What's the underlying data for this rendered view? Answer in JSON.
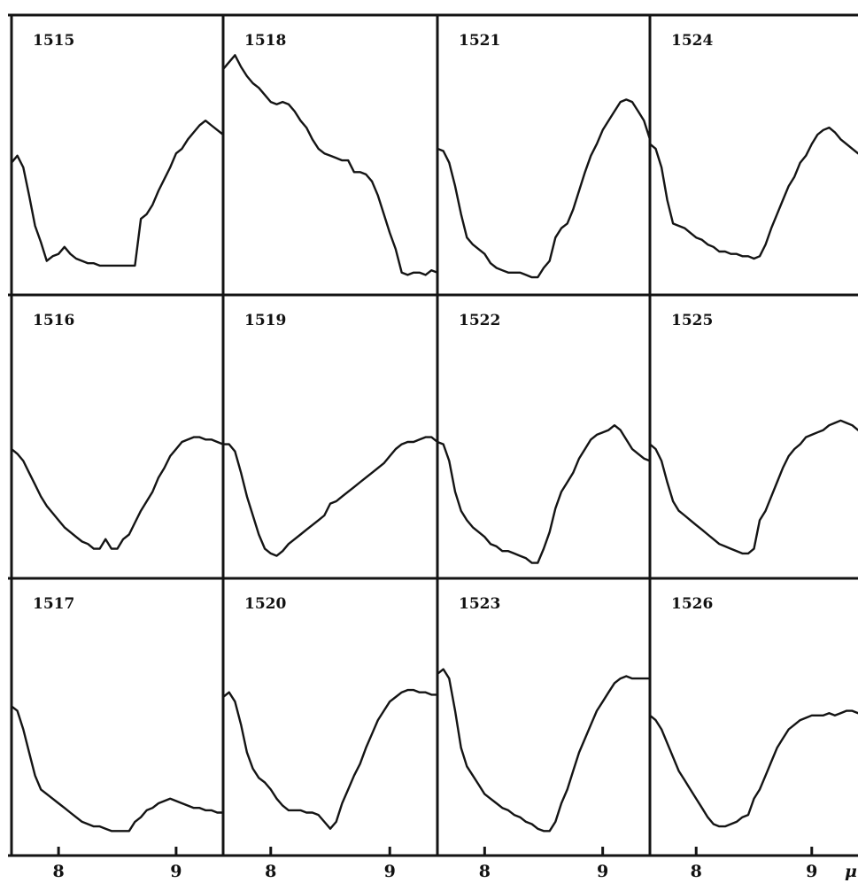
{
  "chart_data": {
    "type": "line",
    "layout": "grid 3 rows x 4 columns of small panels",
    "x_tick_labels": [
      "8",
      "9"
    ],
    "x_edge_label": "μ",
    "xlim": [
      7.6,
      9.4
    ],
    "ylim": [
      0,
      1
    ],
    "grid": false,
    "panels": [
      {
        "label": "1515",
        "x": [
          7.6,
          7.65,
          7.7,
          7.75,
          7.8,
          7.85,
          7.9,
          7.95,
          8.0,
          8.05,
          8.1,
          8.15,
          8.2,
          8.25,
          8.3,
          8.35,
          8.4,
          8.45,
          8.5,
          8.55,
          8.6,
          8.65,
          8.7,
          8.75,
          8.8,
          8.85,
          8.9,
          8.95,
          9.0,
          9.05,
          9.1,
          9.15,
          9.2,
          9.25,
          9.3,
          9.35,
          9.4
        ],
        "y": [
          0.52,
          0.55,
          0.5,
          0.38,
          0.25,
          0.18,
          0.1,
          0.12,
          0.13,
          0.16,
          0.13,
          0.11,
          0.1,
          0.09,
          0.09,
          0.08,
          0.08,
          0.08,
          0.08,
          0.08,
          0.08,
          0.08,
          0.28,
          0.3,
          0.34,
          0.4,
          0.45,
          0.5,
          0.56,
          0.58,
          0.62,
          0.65,
          0.68,
          0.7,
          0.68,
          0.66,
          0.64
        ]
      },
      {
        "label": "1518",
        "x": [
          7.6,
          7.65,
          7.7,
          7.75,
          7.8,
          7.85,
          7.9,
          7.95,
          8.0,
          8.05,
          8.1,
          8.15,
          8.2,
          8.25,
          8.3,
          8.35,
          8.4,
          8.45,
          8.5,
          8.55,
          8.6,
          8.65,
          8.7,
          8.75,
          8.8,
          8.85,
          8.9,
          8.95,
          9.0,
          9.05,
          9.1,
          9.15,
          9.2,
          9.25,
          9.3,
          9.35,
          9.4
        ],
        "y": [
          0.92,
          0.95,
          0.98,
          0.93,
          0.89,
          0.86,
          0.84,
          0.81,
          0.78,
          0.77,
          0.78,
          0.77,
          0.74,
          0.7,
          0.67,
          0.62,
          0.58,
          0.56,
          0.55,
          0.54,
          0.53,
          0.53,
          0.48,
          0.48,
          0.47,
          0.44,
          0.38,
          0.3,
          0.22,
          0.15,
          0.05,
          0.04,
          0.05,
          0.05,
          0.04,
          0.06,
          0.05
        ]
      },
      {
        "label": "1521",
        "x": [
          7.6,
          7.65,
          7.7,
          7.75,
          7.8,
          7.85,
          7.9,
          7.95,
          8.0,
          8.05,
          8.1,
          8.15,
          8.2,
          8.25,
          8.3,
          8.35,
          8.4,
          8.45,
          8.5,
          8.55,
          8.6,
          8.65,
          8.7,
          8.75,
          8.8,
          8.85,
          8.9,
          8.95,
          9.0,
          9.05,
          9.1,
          9.15,
          9.2,
          9.25,
          9.3,
          9.35,
          9.4
        ],
        "y": [
          0.58,
          0.57,
          0.52,
          0.42,
          0.3,
          0.2,
          0.17,
          0.15,
          0.13,
          0.09,
          0.07,
          0.06,
          0.05,
          0.05,
          0.05,
          0.04,
          0.03,
          0.03,
          0.07,
          0.1,
          0.2,
          0.24,
          0.26,
          0.32,
          0.4,
          0.48,
          0.55,
          0.6,
          0.66,
          0.7,
          0.74,
          0.78,
          0.79,
          0.78,
          0.74,
          0.7,
          0.62
        ]
      },
      {
        "label": "1524",
        "x": [
          7.6,
          7.65,
          7.7,
          7.75,
          7.8,
          7.85,
          7.9,
          7.95,
          8.0,
          8.05,
          8.1,
          8.15,
          8.2,
          8.25,
          8.3,
          8.35,
          8.4,
          8.45,
          8.5,
          8.55,
          8.6,
          8.65,
          8.7,
          8.75,
          8.8,
          8.85,
          8.9,
          8.95,
          9.0,
          9.05,
          9.1,
          9.15,
          9.2,
          9.25,
          9.3,
          9.35,
          9.4
        ],
        "y": [
          0.6,
          0.58,
          0.5,
          0.36,
          0.26,
          0.25,
          0.24,
          0.22,
          0.2,
          0.19,
          0.17,
          0.16,
          0.14,
          0.14,
          0.13,
          0.13,
          0.12,
          0.12,
          0.11,
          0.12,
          0.17,
          0.24,
          0.3,
          0.36,
          0.42,
          0.46,
          0.52,
          0.55,
          0.6,
          0.64,
          0.66,
          0.67,
          0.65,
          0.62,
          0.6,
          0.58,
          0.56
        ]
      },
      {
        "label": "1516",
        "x": [
          7.6,
          7.65,
          7.7,
          7.75,
          7.8,
          7.85,
          7.9,
          7.95,
          8.0,
          8.05,
          8.1,
          8.15,
          8.2,
          8.25,
          8.3,
          8.35,
          8.4,
          8.45,
          8.5,
          8.55,
          8.6,
          8.65,
          8.7,
          8.75,
          8.8,
          8.85,
          8.9,
          8.95,
          9.0,
          9.05,
          9.1,
          9.15,
          9.2,
          9.25,
          9.3,
          9.35,
          9.4
        ],
        "y": [
          0.5,
          0.48,
          0.45,
          0.4,
          0.35,
          0.3,
          0.26,
          0.23,
          0.2,
          0.17,
          0.15,
          0.13,
          0.11,
          0.1,
          0.08,
          0.08,
          0.12,
          0.08,
          0.08,
          0.12,
          0.14,
          0.19,
          0.24,
          0.28,
          0.32,
          0.38,
          0.42,
          0.47,
          0.5,
          0.53,
          0.54,
          0.55,
          0.55,
          0.54,
          0.54,
          0.53,
          0.52
        ]
      },
      {
        "label": "1519",
        "x": [
          7.6,
          7.65,
          7.7,
          7.75,
          7.8,
          7.85,
          7.9,
          7.95,
          8.0,
          8.05,
          8.1,
          8.15,
          8.2,
          8.25,
          8.3,
          8.35,
          8.4,
          8.45,
          8.5,
          8.55,
          8.6,
          8.65,
          8.7,
          8.75,
          8.8,
          8.85,
          8.9,
          8.95,
          9.0,
          9.05,
          9.1,
          9.15,
          9.2,
          9.25,
          9.3,
          9.35,
          9.4
        ],
        "y": [
          0.52,
          0.52,
          0.49,
          0.4,
          0.3,
          0.22,
          0.14,
          0.08,
          0.06,
          0.05,
          0.07,
          0.1,
          0.12,
          0.14,
          0.16,
          0.18,
          0.2,
          0.22,
          0.27,
          0.28,
          0.3,
          0.32,
          0.34,
          0.36,
          0.38,
          0.4,
          0.42,
          0.44,
          0.47,
          0.5,
          0.52,
          0.53,
          0.53,
          0.54,
          0.55,
          0.55,
          0.53
        ]
      },
      {
        "label": "1522",
        "x": [
          7.6,
          7.65,
          7.7,
          7.75,
          7.8,
          7.85,
          7.9,
          7.95,
          8.0,
          8.05,
          8.1,
          8.15,
          8.2,
          8.25,
          8.3,
          8.35,
          8.4,
          8.45,
          8.5,
          8.55,
          8.6,
          8.65,
          8.7,
          8.75,
          8.8,
          8.85,
          8.9,
          8.95,
          9.0,
          9.05,
          9.1,
          9.15,
          9.2,
          9.25,
          9.3,
          9.35,
          9.4
        ],
        "y": [
          0.53,
          0.52,
          0.45,
          0.32,
          0.24,
          0.2,
          0.17,
          0.15,
          0.13,
          0.1,
          0.09,
          0.07,
          0.07,
          0.06,
          0.05,
          0.04,
          0.02,
          0.02,
          0.08,
          0.15,
          0.25,
          0.32,
          0.36,
          0.4,
          0.46,
          0.5,
          0.54,
          0.56,
          0.57,
          0.58,
          0.6,
          0.58,
          0.54,
          0.5,
          0.48,
          0.46,
          0.45
        ]
      },
      {
        "label": "1525",
        "x": [
          7.6,
          7.65,
          7.7,
          7.75,
          7.8,
          7.85,
          7.9,
          7.95,
          8.0,
          8.05,
          8.1,
          8.15,
          8.2,
          8.25,
          8.3,
          8.35,
          8.4,
          8.45,
          8.5,
          8.55,
          8.6,
          8.65,
          8.7,
          8.75,
          8.8,
          8.85,
          8.9,
          8.95,
          9.0,
          9.05,
          9.1,
          9.15,
          9.2,
          9.25,
          9.3,
          9.35,
          9.4
        ],
        "y": [
          0.52,
          0.5,
          0.45,
          0.36,
          0.28,
          0.24,
          0.22,
          0.2,
          0.18,
          0.16,
          0.14,
          0.12,
          0.1,
          0.09,
          0.08,
          0.07,
          0.06,
          0.06,
          0.08,
          0.2,
          0.24,
          0.3,
          0.36,
          0.42,
          0.47,
          0.5,
          0.52,
          0.55,
          0.56,
          0.57,
          0.58,
          0.6,
          0.61,
          0.62,
          0.61,
          0.6,
          0.58
        ]
      },
      {
        "label": "1517",
        "x": [
          7.6,
          7.65,
          7.7,
          7.75,
          7.8,
          7.85,
          7.9,
          7.95,
          8.0,
          8.05,
          8.1,
          8.15,
          8.2,
          8.25,
          8.3,
          8.35,
          8.4,
          8.45,
          8.5,
          8.55,
          8.6,
          8.65,
          8.7,
          8.75,
          8.8,
          8.85,
          8.9,
          8.95,
          9.0,
          9.05,
          9.1,
          9.15,
          9.2,
          9.25,
          9.3,
          9.35,
          9.4
        ],
        "y": [
          0.6,
          0.58,
          0.5,
          0.4,
          0.3,
          0.24,
          0.22,
          0.2,
          0.18,
          0.16,
          0.14,
          0.12,
          0.1,
          0.09,
          0.08,
          0.08,
          0.07,
          0.06,
          0.06,
          0.06,
          0.06,
          0.1,
          0.12,
          0.15,
          0.16,
          0.18,
          0.19,
          0.2,
          0.19,
          0.18,
          0.17,
          0.16,
          0.16,
          0.15,
          0.15,
          0.14,
          0.14
        ]
      },
      {
        "label": "1520",
        "x": [
          7.6,
          7.65,
          7.7,
          7.75,
          7.8,
          7.85,
          7.9,
          7.95,
          8.0,
          8.05,
          8.1,
          8.15,
          8.2,
          8.25,
          8.3,
          8.35,
          8.4,
          8.45,
          8.5,
          8.55,
          8.6,
          8.65,
          8.7,
          8.75,
          8.8,
          8.85,
          8.9,
          8.95,
          9.0,
          9.05,
          9.1,
          9.15,
          9.2,
          9.25,
          9.3,
          9.35,
          9.4
        ],
        "y": [
          0.64,
          0.66,
          0.62,
          0.52,
          0.4,
          0.33,
          0.29,
          0.27,
          0.24,
          0.2,
          0.17,
          0.15,
          0.15,
          0.15,
          0.14,
          0.14,
          0.13,
          0.1,
          0.07,
          0.1,
          0.18,
          0.24,
          0.3,
          0.35,
          0.42,
          0.48,
          0.54,
          0.58,
          0.62,
          0.64,
          0.66,
          0.67,
          0.67,
          0.66,
          0.66,
          0.65,
          0.65
        ]
      },
      {
        "label": "1523",
        "x": [
          7.6,
          7.65,
          7.7,
          7.75,
          7.8,
          7.85,
          7.9,
          7.95,
          8.0,
          8.05,
          8.1,
          8.15,
          8.2,
          8.25,
          8.3,
          8.35,
          8.4,
          8.45,
          8.5,
          8.55,
          8.6,
          8.65,
          8.7,
          8.75,
          8.8,
          8.85,
          8.9,
          8.95,
          9.0,
          9.05,
          9.1,
          9.15,
          9.2,
          9.25,
          9.3,
          9.35,
          9.4
        ],
        "y": [
          0.74,
          0.76,
          0.72,
          0.58,
          0.42,
          0.34,
          0.3,
          0.26,
          0.22,
          0.2,
          0.18,
          0.16,
          0.15,
          0.13,
          0.12,
          0.1,
          0.09,
          0.07,
          0.06,
          0.06,
          0.1,
          0.18,
          0.24,
          0.32,
          0.4,
          0.46,
          0.52,
          0.58,
          0.62,
          0.66,
          0.7,
          0.72,
          0.73,
          0.72,
          0.72,
          0.72,
          0.72
        ]
      },
      {
        "label": "1526",
        "x": [
          7.6,
          7.65,
          7.7,
          7.75,
          7.8,
          7.85,
          7.9,
          7.95,
          8.0,
          8.05,
          8.1,
          8.15,
          8.2,
          8.25,
          8.3,
          8.35,
          8.4,
          8.45,
          8.5,
          8.55,
          8.6,
          8.65,
          8.7,
          8.75,
          8.8,
          8.85,
          8.9,
          8.95,
          9.0,
          9.05,
          9.1,
          9.15,
          9.2,
          9.25,
          9.3,
          9.35,
          9.4
        ],
        "y": [
          0.56,
          0.54,
          0.5,
          0.44,
          0.38,
          0.32,
          0.28,
          0.24,
          0.2,
          0.16,
          0.12,
          0.09,
          0.08,
          0.08,
          0.09,
          0.1,
          0.12,
          0.13,
          0.2,
          0.24,
          0.3,
          0.36,
          0.42,
          0.46,
          0.5,
          0.52,
          0.54,
          0.55,
          0.56,
          0.56,
          0.56,
          0.57,
          0.56,
          0.57,
          0.58,
          0.58,
          0.57
        ]
      }
    ]
  }
}
